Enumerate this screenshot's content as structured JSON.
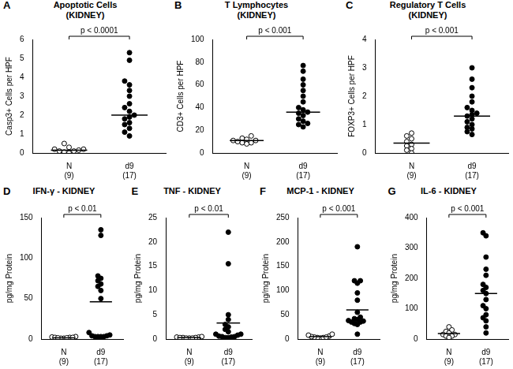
{
  "chart_data": [
    {
      "type": "scatter",
      "panel": "A",
      "title": "Apoptotic Cells",
      "subtitle": "(KIDNEY)",
      "y_label": "Casp3+ Cells per HPF",
      "annotation": "p < 0.0001",
      "ylim": [
        0,
        6
      ],
      "yticks": [
        0,
        1,
        2,
        3,
        4,
        5,
        6
      ],
      "grid": false,
      "series": [
        {
          "name": "N",
          "n_label": "(9)",
          "color": "#000000",
          "marker": "open_circle",
          "center_line": 0.15,
          "values": [
            0.1,
            0.1,
            0.15,
            0.2,
            0.05,
            0.3,
            0.5,
            0.0,
            0.2
          ]
        },
        {
          "name": "d9",
          "n_label": "(17)",
          "color": "#000000",
          "marker": "circle",
          "center_line": 2.0,
          "values": [
            5.3,
            4.9,
            3.8,
            3.6,
            3.3,
            3.0,
            2.6,
            2.4,
            2.2,
            2.0,
            1.9,
            1.8,
            1.6,
            1.5,
            1.3,
            1.1,
            0.9
          ]
        }
      ]
    },
    {
      "type": "scatter",
      "panel": "B",
      "title": "T Lymphocytes",
      "subtitle": "(KIDNEY)",
      "y_label": "CD3+ Cells per HPF",
      "annotation": "p < 0.001",
      "ylim": [
        0,
        100
      ],
      "yticks": [
        0,
        20,
        40,
        60,
        80,
        100
      ],
      "grid": false,
      "series": [
        {
          "name": "N",
          "n_label": "(9)",
          "color": "#000000",
          "marker": "open_circle",
          "center_line": 11,
          "values": [
            15,
            13,
            12,
            11,
            11,
            10,
            9,
            9,
            8
          ]
        },
        {
          "name": "d9",
          "n_label": "(17)",
          "color": "#000000",
          "marker": "circle",
          "center_line": 36,
          "values": [
            77,
            72,
            65,
            60,
            55,
            50,
            45,
            40,
            38,
            36,
            35,
            33,
            30,
            28,
            26,
            25,
            23
          ]
        }
      ]
    },
    {
      "type": "scatter",
      "panel": "C",
      "title": "Regulatory T Cells",
      "subtitle": "(KIDNEY)",
      "y_label": "FOXP3+ Cells per HPF",
      "annotation": "p < 0.001",
      "ylim": [
        0,
        4
      ],
      "yticks": [
        0,
        1,
        2,
        3,
        4
      ],
      "grid": false,
      "series": [
        {
          "name": "N",
          "n_label": "(9)",
          "color": "#000000",
          "marker": "open_circle",
          "center_line": 0.35,
          "values": [
            0.7,
            0.6,
            0.5,
            0.4,
            0.3,
            0.25,
            0.15,
            0.1,
            0.0
          ]
        },
        {
          "name": "d9",
          "n_label": "(17)",
          "color": "#000000",
          "marker": "circle",
          "center_line": 1.3,
          "values": [
            3.0,
            2.6,
            2.3,
            2.0,
            1.8,
            1.6,
            1.5,
            1.4,
            1.35,
            1.3,
            1.2,
            1.1,
            1.0,
            0.9,
            0.85,
            0.75,
            0.65
          ]
        }
      ]
    },
    {
      "type": "scatter",
      "panel": "D",
      "title": "IFN-γ - KIDNEY",
      "y_label": "pg/mg Protein",
      "annotation": "p < 0.01",
      "ylim": [
        0,
        150
      ],
      "yticks": [
        0,
        50,
        100,
        150
      ],
      "grid": false,
      "series": [
        {
          "name": "N",
          "n_label": "(9)",
          "color": "#000000",
          "marker": "open_circle",
          "center_line": 1.5,
          "values": [
            1,
            2,
            1.5,
            2.5,
            1,
            2,
            3,
            1.5,
            2
          ]
        },
        {
          "name": "d9",
          "n_label": "(17)",
          "color": "#000000",
          "marker": "circle",
          "center_line": 46,
          "values": [
            135,
            128,
            78,
            75,
            72,
            68,
            65,
            60,
            50,
            8,
            5,
            4,
            4,
            3,
            3,
            3,
            3
          ]
        }
      ]
    },
    {
      "type": "scatter",
      "panel": "E",
      "title": "TNF - KIDNEY",
      "y_label": "pg/mg Protein",
      "annotation": "p < 0.01",
      "ylim": [
        0,
        25
      ],
      "yticks": [
        0,
        5,
        10,
        15,
        20,
        25
      ],
      "grid": false,
      "series": [
        {
          "name": "N",
          "n_label": "(9)",
          "color": "#000000",
          "marker": "open_circle",
          "center_line": 0.3,
          "values": [
            0.3,
            0.4,
            0.2,
            0.5,
            0.3,
            0.2,
            0.4,
            0.3,
            0.2
          ]
        },
        {
          "name": "d9",
          "n_label": "(17)",
          "color": "#000000",
          "marker": "circle",
          "center_line": 3.3,
          "values": [
            22,
            15.5,
            5,
            4,
            3,
            2.5,
            2,
            1.5,
            1,
            1,
            0.8,
            0.6,
            0.5,
            0.5,
            0.4,
            0.3,
            0.3
          ]
        }
      ]
    },
    {
      "type": "scatter",
      "panel": "F",
      "title": "MCP-1 - KIDNEY",
      "y_label": "pg/mg Protein",
      "annotation": "p < 0.001",
      "ylim": [
        0,
        250
      ],
      "yticks": [
        0,
        50,
        100,
        150,
        200,
        250
      ],
      "grid": false,
      "series": [
        {
          "name": "N",
          "n_label": "(9)",
          "color": "#000000",
          "marker": "open_circle",
          "center_line": 5,
          "values": [
            2,
            3,
            4,
            5,
            6,
            8,
            10,
            3,
            4
          ]
        },
        {
          "name": "d9",
          "n_label": "(17)",
          "color": "#000000",
          "marker": "circle",
          "center_line": 60,
          "values": [
            190,
            120,
            120,
            115,
            95,
            80,
            55,
            45,
            42,
            40,
            38,
            37,
            35,
            35,
            32,
            30,
            10
          ]
        }
      ]
    },
    {
      "type": "scatter",
      "panel": "G",
      "title": "IL-6 - KIDNEY",
      "y_label": "pg/mg Protein",
      "annotation": "p < 0.001",
      "ylim": [
        0,
        400
      ],
      "yticks": [
        0,
        100,
        200,
        300,
        400
      ],
      "grid": false,
      "series": [
        {
          "name": "N",
          "n_label": "(9)",
          "color": "#000000",
          "marker": "open_circle",
          "center_line": 18,
          "values": [
            40,
            30,
            25,
            20,
            15,
            15,
            10,
            10,
            5
          ]
        },
        {
          "name": "d9",
          "n_label": "(17)",
          "color": "#000000",
          "marker": "circle",
          "center_line": 150,
          "values": [
            350,
            340,
            270,
            230,
            210,
            180,
            170,
            160,
            150,
            130,
            110,
            100,
            80,
            70,
            60,
            40,
            20
          ]
        }
      ]
    }
  ]
}
